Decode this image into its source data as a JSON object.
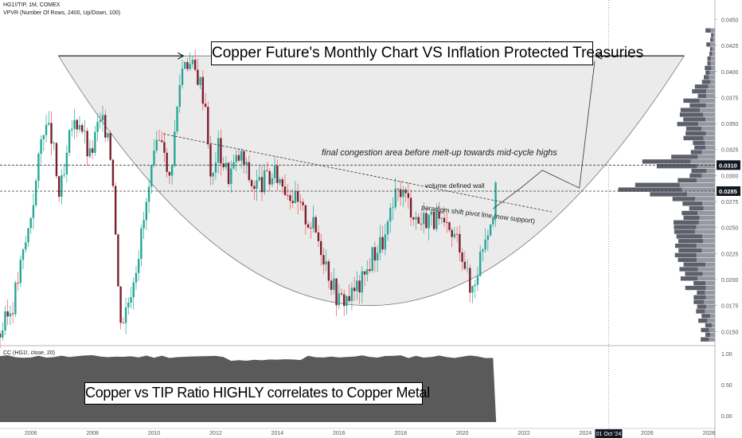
{
  "header": {
    "symbol_line": "HG1!/TIP, 1M, COMEX",
    "indicator_line": "VPVR (Number Of Rows, 2400, Up/Down, 100)",
    "cc_label": "CC (HG1!, close, 20)"
  },
  "annotations": {
    "main_title": "Copper Future's Monthly Chart VS Inflation Protected Treasuries",
    "congestion": "final congestion area before melt-up towards mid-cycle highs",
    "volume_wall": "volume defined wall",
    "pivot_line": "paradigm shift pivot line (now support)",
    "correlation": "Copper vs TIP Ratio HIGHLY correlates to Copper Metal"
  },
  "chart_data": [
    {
      "type": "candlestick",
      "x_axis": {
        "ticks": [
          "2006",
          "2008",
          "2010",
          "2012",
          "2014",
          "2016",
          "2018",
          "2020",
          "2022",
          "2024",
          "2026",
          "2028"
        ],
        "cursor_label": "01 Oct '24"
      },
      "y_axis": {
        "ticks": [
          0.015,
          0.0175,
          0.02,
          0.0225,
          0.025,
          0.0275,
          0.03,
          0.0325,
          0.035,
          0.0375,
          0.04,
          0.0425,
          0.045
        ],
        "tick_labels": [
          "0.0150",
          "0.0175",
          "0.0200",
          "0.0225",
          "0.0250",
          "0.0275",
          "0.0300",
          "0.0325",
          "0.0350",
          "0.0375",
          "0.0400",
          "0.0425",
          "0.0450"
        ],
        "ylim": [
          0.0138,
          0.0458
        ],
        "highlighted": [
          {
            "value": 0.031,
            "label": "0.0310"
          },
          {
            "value": 0.0285,
            "label": "0.0285"
          }
        ]
      },
      "price_path": [
        [
          2005.0,
          0.0148
        ],
        [
          2005.4,
          0.0175
        ],
        [
          2005.9,
          0.0245
        ],
        [
          2006.2,
          0.03
        ],
        [
          2006.4,
          0.035
        ],
        [
          2006.7,
          0.0335
        ],
        [
          2006.9,
          0.028
        ],
        [
          2007.1,
          0.03
        ],
        [
          2007.3,
          0.0345
        ],
        [
          2007.6,
          0.0355
        ],
        [
          2007.9,
          0.0315
        ],
        [
          2008.2,
          0.035
        ],
        [
          2008.5,
          0.0345
        ],
        [
          2008.7,
          0.029
        ],
        [
          2008.8,
          0.02
        ],
        [
          2008.95,
          0.0158
        ],
        [
          2009.2,
          0.0185
        ],
        [
          2009.5,
          0.0228
        ],
        [
          2009.8,
          0.028
        ],
        [
          2010.0,
          0.0315
        ],
        [
          2010.3,
          0.0345
        ],
        [
          2010.45,
          0.0285
        ],
        [
          2010.65,
          0.0335
        ],
        [
          2010.85,
          0.0395
        ],
        [
          2011.0,
          0.0415
        ],
        [
          2011.2,
          0.0405
        ],
        [
          2011.45,
          0.0395
        ],
        [
          2011.7,
          0.0365
        ],
        [
          2011.85,
          0.0285
        ],
        [
          2012.05,
          0.033
        ],
        [
          2012.4,
          0.03
        ],
        [
          2012.8,
          0.032
        ],
        [
          2013.2,
          0.029
        ],
        [
          2013.6,
          0.0295
        ],
        [
          2014.0,
          0.03
        ],
        [
          2014.4,
          0.0285
        ],
        [
          2014.8,
          0.0265
        ],
        [
          2015.2,
          0.025
        ],
        [
          2015.5,
          0.0225
        ],
        [
          2015.8,
          0.0195
        ],
        [
          2016.0,
          0.018
        ],
        [
          2016.4,
          0.0185
        ],
        [
          2016.8,
          0.02
        ],
        [
          2017.1,
          0.0225
        ],
        [
          2017.5,
          0.024
        ],
        [
          2017.8,
          0.0275
        ],
        [
          2018.0,
          0.0288
        ],
        [
          2018.3,
          0.0272
        ],
        [
          2018.6,
          0.0255
        ],
        [
          2018.9,
          0.0262
        ],
        [
          2019.2,
          0.0255
        ],
        [
          2019.5,
          0.0245
        ],
        [
          2019.9,
          0.0238
        ],
        [
          2020.1,
          0.0215
        ],
        [
          2020.25,
          0.0188
        ],
        [
          2020.45,
          0.0205
        ],
        [
          2020.7,
          0.024
        ],
        [
          2020.95,
          0.0262
        ],
        [
          2021.1,
          0.0285
        ]
      ],
      "volume_profile": {
        "poc": 0.0285,
        "upper_wall": 0.031
      },
      "drawings": {
        "cup_rim_y": 0.0415,
        "cup_bottom_y": 0.0175,
        "pivot_line": [
          [
            2010.3,
            0.034
          ],
          [
            2022.9,
            0.0265
          ]
        ],
        "projection_path": [
          [
            2021.0,
            0.0268
          ],
          [
            2021.9,
            0.0288
          ],
          [
            2022.6,
            0.0305
          ],
          [
            2023.8,
            0.0288
          ],
          [
            2024.3,
            0.041
          ]
        ]
      }
    },
    {
      "type": "area",
      "title": "CC (HG1!, close, 20)",
      "y_axis": {
        "ticks": [
          0.0,
          0.5,
          1.0
        ],
        "tick_labels": [
          "0.00",
          "0.50",
          "1.00"
        ],
        "ylim": [
          -0.1,
          1.1
        ]
      },
      "x_range": [
        2005.0,
        2021.1
      ],
      "value_hint": 0.95
    }
  ]
}
